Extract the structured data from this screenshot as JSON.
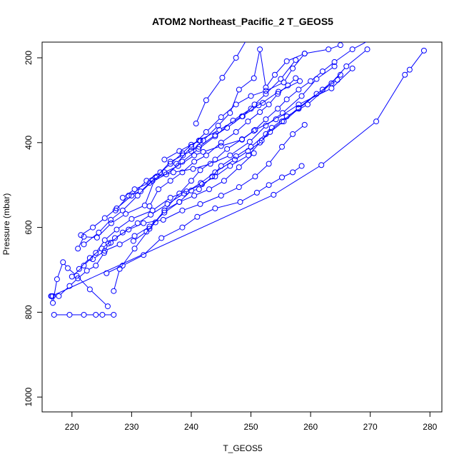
{
  "chart_data": {
    "type": "line",
    "title": "ATOM2 Northeast_Pacific_2 T_GEOS5",
    "xlabel": "T_GEOS5",
    "ylabel": "Pressure (mbar)",
    "xlim": [
      215,
      282
    ],
    "ylim": [
      1035,
      163
    ],
    "y_reversed": true,
    "grid": false,
    "legend": "none",
    "xticks": [
      220,
      230,
      240,
      250,
      260,
      270,
      280
    ],
    "yticks": [
      200,
      400,
      600,
      800,
      1000
    ],
    "color": "#0000ff",
    "series": [
      {
        "x": [
          279.0,
          276.6,
          275.8,
          271.0,
          261.8,
          253.8,
          216.6
        ],
        "y": [
          183,
          228,
          240,
          350,
          453,
          523,
          762
        ]
      },
      {
        "x": [
          226.0,
          223.0,
          220.8,
          219.3,
          218.5,
          217.5,
          216.8,
          216.5
        ],
        "y": [
          786,
          746,
          714,
          696,
          682,
          722,
          778,
          762
        ]
      },
      {
        "x": [
          217.0,
          219.6,
          222.0,
          224.0,
          225.1,
          227.0
        ],
        "y": [
          806,
          806,
          806,
          806,
          806,
          806
        ]
      },
      {
        "x": [
          227.0,
          228.0,
          230.5,
          233.0,
          235.5,
          238.0,
          240.0,
          241.5,
          244.0,
          246.0,
          248.5,
          250.5,
          252.5,
          254.5,
          256.0,
          258.0,
          260.0,
          262.0,
          264.0,
          267.0,
          271.0
        ],
        "y": [
          750,
          698,
          650,
          603,
          560,
          520,
          490,
          465,
          440,
          415,
          392,
          372,
          345,
          320,
          298,
          275,
          255,
          232,
          210,
          180,
          150
        ]
      },
      {
        "x": [
          216.8,
          217.8,
          219.6,
          221.0,
          222.5,
          224.0,
          225.4,
          226.1,
          226.5,
          228.5,
          231.0,
          233.2,
          236.0,
          238.8,
          241.6,
          244.0,
          247.3,
          249.5,
          251.5,
          253.2,
          255.5,
          258.0,
          262.0,
          265.0
        ],
        "y": [
          762,
          762,
          738,
          720,
          702,
          690,
          660,
          638,
          636,
          612,
          590,
          570,
          545,
          520,
          495,
          470,
          440,
          420,
          400,
          375,
          350,
          320,
          275,
          240
        ]
      },
      {
        "x": [
          220.0,
          222.0,
          224.0,
          225.5,
          227.5,
          230.0,
          233.5,
          236.5,
          239.2,
          241.8,
          244.0,
          246.5,
          249.6,
          251.8,
          253.5,
          256.0,
          259.5,
          263.5,
          266.0,
          269.5
        ],
        "y": [
          716,
          690,
          660,
          630,
          605,
          580,
          560,
          530,
          515,
          498,
          480,
          455,
          430,
          395,
          365,
          338,
          310,
          260,
          220,
          180
        ]
      },
      {
        "x": [
          221.2,
          223.0,
          225.0,
          227.2,
          229.5,
          232.0,
          235.3,
          238.5,
          241.5,
          245.0,
          248.0,
          250.7,
          253.0,
          255.2,
          257.0,
          259.0
        ],
        "y": [
          698,
          672,
          650,
          625,
          605,
          590,
          582,
          560,
          545,
          525,
          505,
          480,
          450,
          410,
          380,
          358
        ]
      },
      {
        "x": [
          221.0,
          222.0,
          224.2,
          226.6,
          229.0,
          232.2,
          234.0,
          237.0,
          240.3,
          243.2,
          246.5,
          249.8,
          252.5,
          255.3,
          258.5,
          261.0,
          264.0
        ],
        "y": [
          650,
          622,
          624,
          590,
          568,
          548,
          482,
          470,
          462,
          450,
          430,
          398,
          360,
          330,
          290,
          250,
          220
        ]
      },
      {
        "x": [
          221.5,
          223.5,
          225.5,
          227.5,
          230.0,
          232.5,
          234.8,
          236.5,
          238.5,
          240.0,
          241.5
        ],
        "y": [
          618,
          600,
          578,
          555,
          525,
          490,
          470,
          450,
          425,
          405,
          395
        ]
      },
      {
        "x": [
          222.0,
          224.5,
          226.5,
          228.5,
          231.0,
          233.5,
          235.5,
          237.8,
          240.5,
          242.0,
          245.0,
          248.5,
          250.7,
          254.2,
          258.0,
          263.5,
          267.0
        ],
        "y": [
          640,
          612,
          582,
          560,
          525,
          490,
          470,
          455,
          430,
          422,
          408,
          393,
          370,
          345,
          310,
          272,
          225
        ]
      },
      {
        "x": [
          223.5,
          225.5,
          228.0,
          230.5,
          233.0,
          235.5,
          238.0,
          240.0,
          241.3,
          243.5,
          245.0,
          247.5,
          250.0,
          252.5,
          255.2,
          258.0,
          261.0,
          264.5
        ],
        "y": [
          675,
          655,
          640,
          620,
          598,
          565,
          540,
          513,
          510,
          480,
          455,
          432,
          410,
          380,
          350,
          318,
          285,
          252
        ]
      },
      {
        "x": [
          225.8,
          228.5,
          232.0,
          235.0,
          238.5,
          241.0,
          244.0,
          248.2,
          251.0,
          253.0,
          255.2,
          257.0,
          258.5
        ],
        "y": [
          708,
          690,
          665,
          625,
          600,
          575,
          555,
          540,
          518,
          500,
          482,
          470,
          455
        ]
      },
      {
        "x": [
          230.3,
          232.5,
          234.0,
          235.5,
          238.0,
          240.5,
          243.0,
          245.5,
          248.0,
          250.5
        ],
        "y": [
          632,
          610,
          588,
          560,
          540,
          525,
          510,
          490,
          458,
          425
        ]
      },
      {
        "x": [
          227.3,
          229.5,
          231.5,
          234.2,
          236.5,
          238.6,
          241.3,
          244.0,
          246.0,
          248.6,
          250.6,
          252.5,
          255.0,
          257.5
        ],
        "y": [
          560,
          525,
          515,
          480,
          445,
          430,
          410,
          382,
          365,
          338,
          310,
          285,
          250,
          205
        ]
      },
      {
        "x": [
          233.0,
          234.5,
          236.5,
          238.5,
          240.5,
          242.5,
          245.0,
          247.5,
          249.5,
          251.5,
          253.0,
          254.5,
          256.2,
          257.5
        ],
        "y": [
          550,
          510,
          490,
          470,
          445,
          430,
          400,
          375,
          350,
          328,
          310,
          285,
          265,
          248
        ]
      },
      {
        "x": [
          228.5,
          230.5,
          233.0,
          235.8,
          238.5,
          241.2,
          244.0,
          247.0,
          250.0,
          252.0
        ],
        "y": [
          530,
          510,
          495,
          475,
          445,
          415,
          385,
          348,
          320,
          306
        ]
      },
      {
        "x": [
          235.5,
          238.0,
          241.3,
          244.7,
          248.5,
          251.3,
          254.6,
          258.2
        ],
        "y": [
          440,
          420,
          395,
          370,
          338,
          312,
          280,
          255
        ]
      },
      {
        "x": [
          237.5,
          240.0,
          242.5,
          245.0,
          247.5,
          250.0,
          252.5,
          255.5,
          257.0,
          259.0
        ],
        "y": [
          450,
          410,
          375,
          340,
          310,
          290,
          278,
          258,
          225,
          190
        ]
      },
      {
        "x": [
          240.0,
          242.0,
          244.5,
          246.5,
          248.0,
          250.5,
          251.5,
          252.5,
          254.0,
          256.0,
          259.0,
          263.0,
          265.0
        ],
        "y": [
          420,
          395,
          360,
          330,
          275,
          248,
          180,
          270,
          240,
          208,
          190,
          180,
          170
        ]
      },
      {
        "x": [
          240.8,
          242.5,
          245.2,
          247.5,
          250.0
        ],
        "y": [
          355,
          300,
          247,
          200,
          140
        ]
      }
    ]
  }
}
